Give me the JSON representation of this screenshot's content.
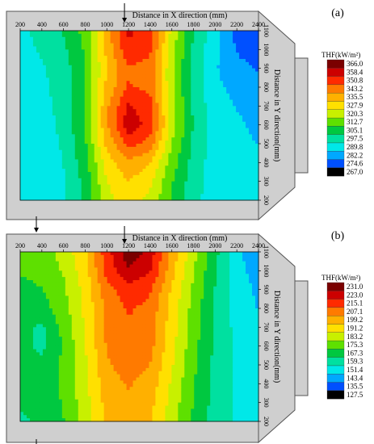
{
  "chart_data": [
    {
      "type": "heatmap",
      "panel_label": "(a)",
      "xlabel": "Distance in X direction (mm)",
      "ylabel": "Distance in Y direction(mm)",
      "x_ticks": [
        200,
        400,
        600,
        800,
        1000,
        1200,
        1400,
        1600,
        1800,
        2000,
        2200,
        2400
      ],
      "y_ticks": [
        200,
        300,
        400,
        500,
        600,
        700,
        800,
        900,
        1000,
        1100
      ],
      "xlim": [
        200,
        2400
      ],
      "ylim": [
        200,
        1100
      ],
      "legend_title": "THF(kW/m²)",
      "legend_levels": [
        "366.0",
        "358.4",
        "350.8",
        "343.2",
        "335.5",
        "327.9",
        "320.3",
        "312.7",
        "305.1",
        "297.5",
        "289.8",
        "282.2",
        "274.6",
        "267.0"
      ],
      "legend_colors": [
        "#7a0000",
        "#cc0000",
        "#ff2a00",
        "#ff7a00",
        "#ffb000",
        "#ffe000",
        "#c8f000",
        "#5ee000",
        "#00c840",
        "#00e0a0",
        "#00e8e8",
        "#00a8ff",
        "#0050ff",
        "#000000"
      ],
      "x": [
        200,
        400,
        600,
        800,
        1000,
        1200,
        1400,
        1600,
        1800,
        2000,
        2200,
        2400
      ],
      "y": [
        1100,
        1000,
        900,
        800,
        700,
        600,
        500,
        400,
        300,
        200
      ],
      "z": [
        [
          288,
          293,
          298,
          308,
          332,
          352,
          347,
          318,
          298,
          285,
          272,
          268
        ],
        [
          286,
          291,
          296,
          306,
          330,
          350,
          345,
          316,
          296,
          284,
          274,
          270
        ],
        [
          284,
          289,
          294,
          305,
          328,
          342,
          340,
          314,
          295,
          283,
          277,
          274
        ],
        [
          283,
          288,
          293,
          305,
          330,
          344,
          341,
          314,
          295,
          284,
          280,
          278
        ],
        [
          283,
          287,
          293,
          306,
          334,
          352,
          346,
          316,
          296,
          285,
          282,
          280
        ],
        [
          284,
          286,
          292,
          306,
          335,
          356,
          348,
          316,
          297,
          286,
          283,
          281
        ],
        [
          286,
          285,
          291,
          304,
          330,
          346,
          340,
          313,
          296,
          286,
          284,
          282
        ],
        [
          287,
          284,
          290,
          302,
          324,
          334,
          328,
          309,
          294,
          286,
          284,
          283
        ],
        [
          286,
          283,
          289,
          300,
          320,
          328,
          322,
          306,
          293,
          286,
          284,
          283
        ],
        [
          285,
          284,
          289,
          299,
          318,
          324,
          318,
          304,
          292,
          286,
          284,
          283
        ]
      ]
    },
    {
      "type": "heatmap",
      "panel_label": "(b)",
      "xlabel": "Distance in X direction (mm)",
      "ylabel": "Distance in Y direction(mm)",
      "x_ticks": [
        200,
        400,
        600,
        800,
        1000,
        1200,
        1400,
        1600,
        1800,
        2000,
        2200,
        2400
      ],
      "y_ticks": [
        200,
        300,
        400,
        500,
        600,
        700,
        800,
        900,
        1000,
        1100
      ],
      "xlim": [
        200,
        2400
      ],
      "ylim": [
        200,
        1100
      ],
      "legend_title": "THF(kW/m²)",
      "legend_levels": [
        "231.0",
        "223.0",
        "215.1",
        "207.1",
        "199.2",
        "191.2",
        "183.2",
        "175.3",
        "167.3",
        "159.3",
        "151.4",
        "143.4",
        "135.5",
        "127.5"
      ],
      "legend_colors": [
        "#7a0000",
        "#cc0000",
        "#ff2a00",
        "#ff7a00",
        "#ffb000",
        "#ffe000",
        "#c8f000",
        "#5ee000",
        "#00c840",
        "#00e0a0",
        "#00e8e8",
        "#00a8ff",
        "#0050ff",
        "#000000"
      ],
      "x": [
        200,
        400,
        600,
        800,
        1000,
        1200,
        1400,
        1600,
        1800,
        2000,
        2200,
        2400
      ],
      "y": [
        1100,
        1000,
        900,
        800,
        700,
        600,
        500,
        400,
        300,
        200
      ],
      "z": [
        [
          170,
          172,
          178,
          190,
          212,
          228,
          220,
          196,
          178,
          162,
          145,
          138
        ],
        [
          168,
          170,
          176,
          188,
          210,
          222,
          216,
          194,
          176,
          160,
          146,
          140
        ],
        [
          165,
          167,
          174,
          186,
          204,
          212,
          208,
          190,
          174,
          159,
          147,
          142
        ],
        [
          163,
          164,
          172,
          185,
          202,
          208,
          205,
          188,
          172,
          158,
          148,
          143
        ],
        [
          162,
          158,
          170,
          184,
          201,
          206,
          203,
          187,
          171,
          158,
          149,
          144
        ],
        [
          162,
          157,
          168,
          183,
          200,
          205,
          202,
          186,
          170,
          158,
          150,
          145
        ],
        [
          163,
          162,
          169,
          182,
          198,
          203,
          199,
          184,
          169,
          157,
          150,
          145
        ],
        [
          162,
          163,
          169,
          181,
          196,
          200,
          196,
          182,
          168,
          157,
          150,
          146
        ],
        [
          160,
          162,
          168,
          180,
          194,
          198,
          194,
          180,
          167,
          156,
          150,
          146
        ],
        [
          158,
          161,
          167,
          179,
          192,
          196,
          192,
          179,
          166,
          156,
          150,
          146
        ]
      ]
    }
  ]
}
